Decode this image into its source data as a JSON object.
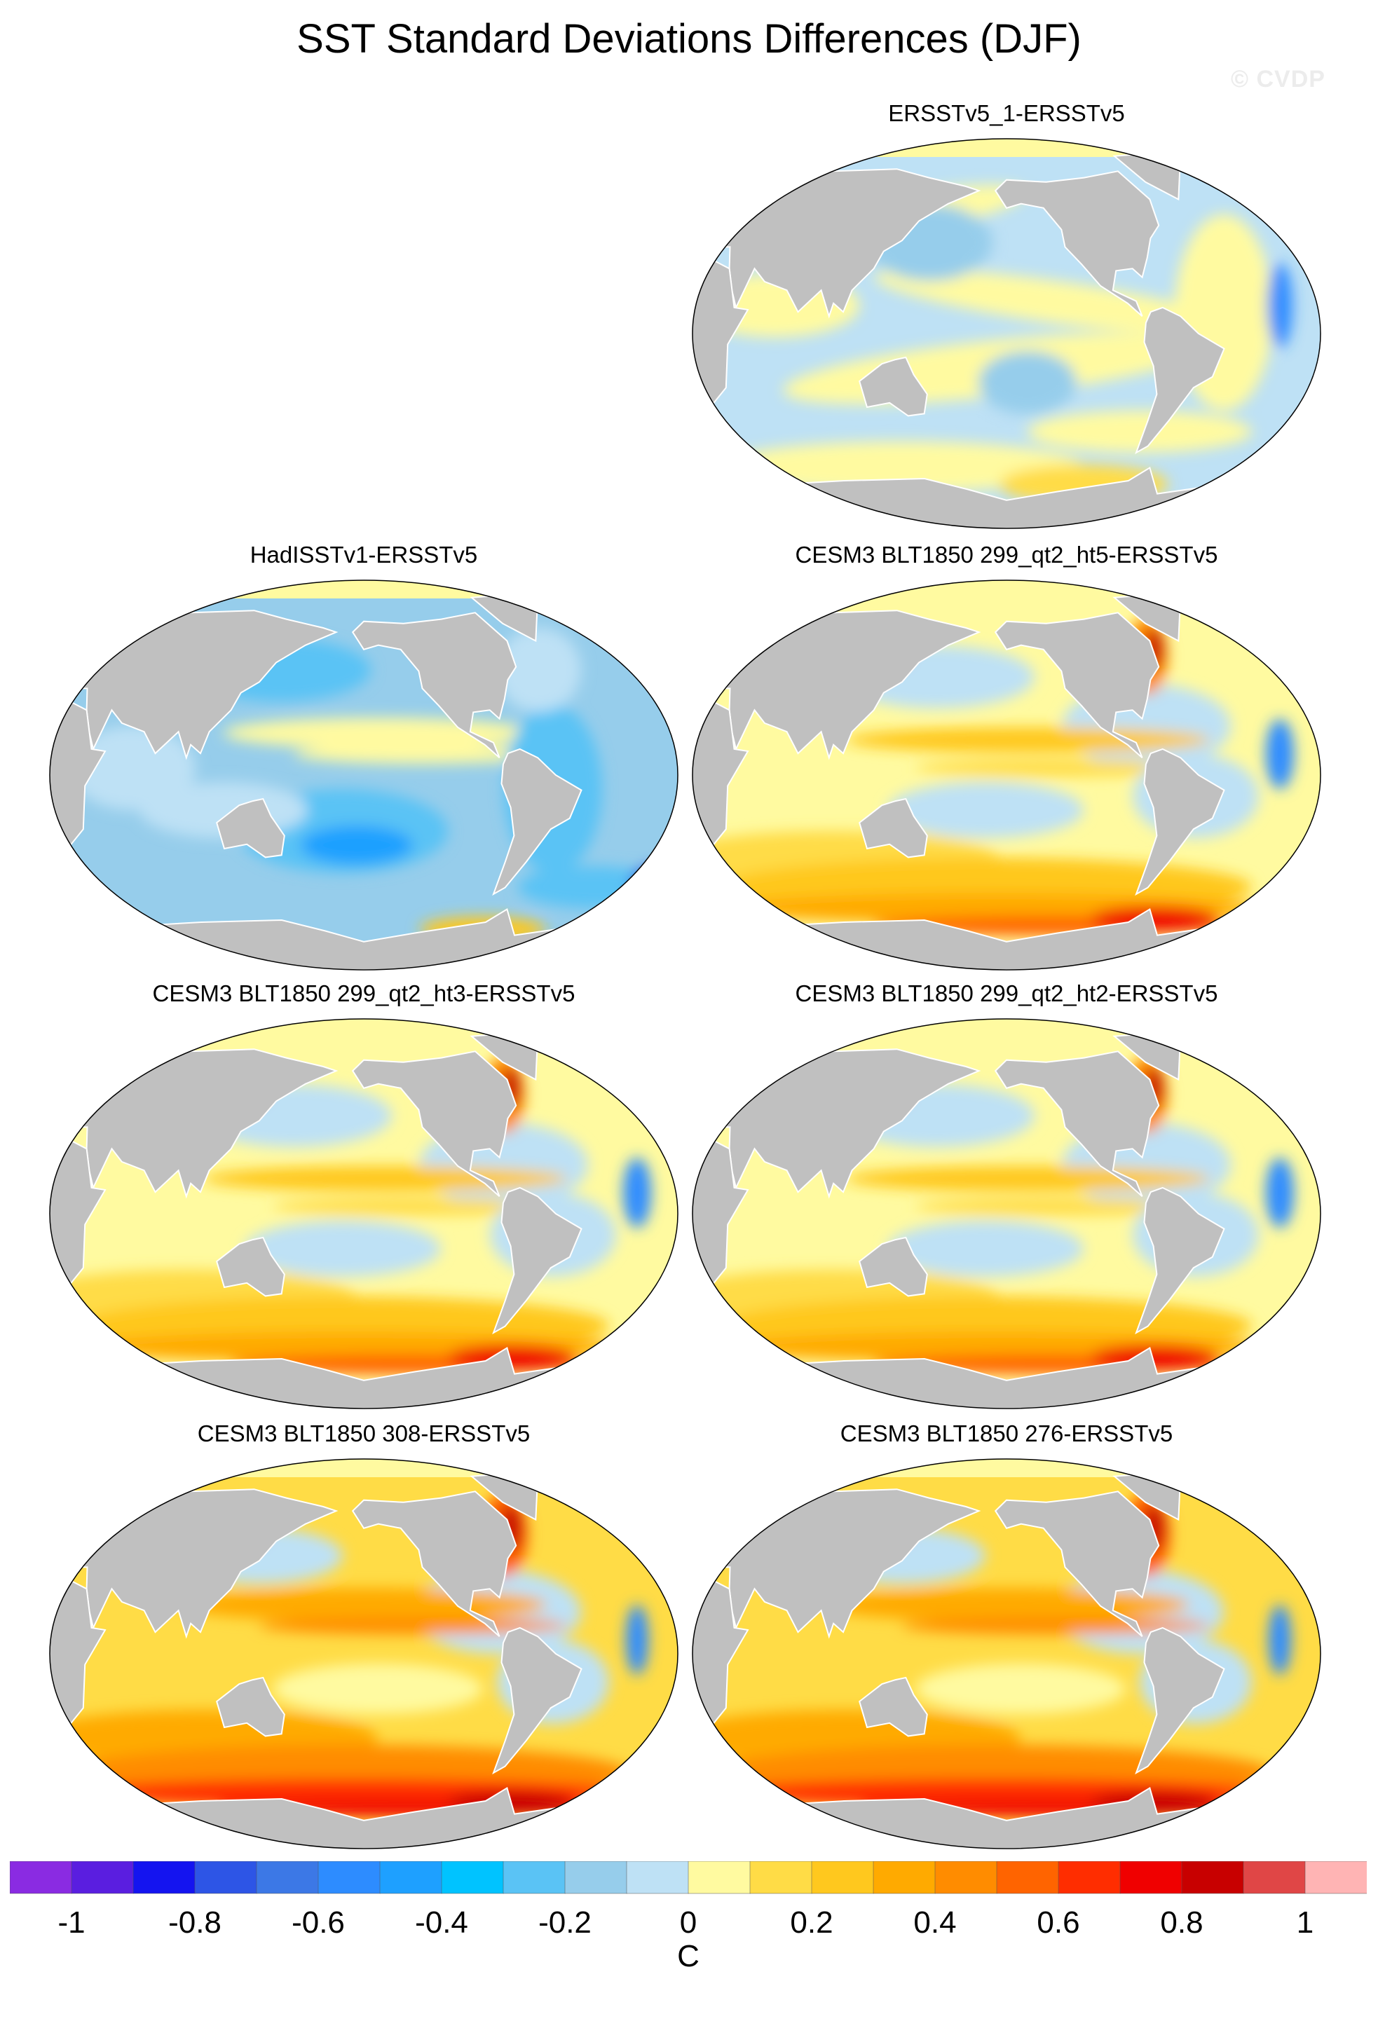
{
  "title": "SST Standard Deviations Differences (DJF)",
  "watermark": "© CVDP",
  "panels": [
    {
      "title": "ERSSTv5_1-ERSSTv5",
      "pattern": "mixed_small"
    },
    {
      "title": "HadISSTv1-ERSSTv5",
      "pattern": "negative"
    },
    {
      "title": "CESM3 BLT1850 299_qt2_ht5-ERSSTv5",
      "pattern": "positive_moderate"
    },
    {
      "title": "CESM3 BLT1850 299_qt2_ht3-ERSSTv5",
      "pattern": "positive_moderate"
    },
    {
      "title": "CESM3 BLT1850 299_qt2_ht2-ERSSTv5",
      "pattern": "positive_moderate"
    },
    {
      "title": "CESM3 BLT1850 308-ERSSTv5",
      "pattern": "positive_strong"
    },
    {
      "title": "CESM3 BLT1850 276-ERSSTv5",
      "pattern": "positive_strong"
    }
  ],
  "colorbar": {
    "unit": "C",
    "tick_labels": [
      "-1",
      "-0.8",
      "-0.6",
      "-0.4",
      "-0.2",
      "0",
      "0.2",
      "0.4",
      "0.6",
      "0.8",
      "1"
    ],
    "colors": [
      "#8a2be2",
      "#5a1ee0",
      "#1414f0",
      "#2d55e6",
      "#3c78e6",
      "#2d8cff",
      "#1ea0ff",
      "#00c3ff",
      "#5ac3f5",
      "#96cdeb",
      "#bee1f5",
      "#fffaa0",
      "#ffdc46",
      "#ffc81e",
      "#ffaa00",
      "#ff8c00",
      "#ff6400",
      "#ff2d00",
      "#f00000",
      "#c80000",
      "#e04646",
      "#ffb4b4"
    ]
  },
  "land_color": "#c0c0c0"
}
